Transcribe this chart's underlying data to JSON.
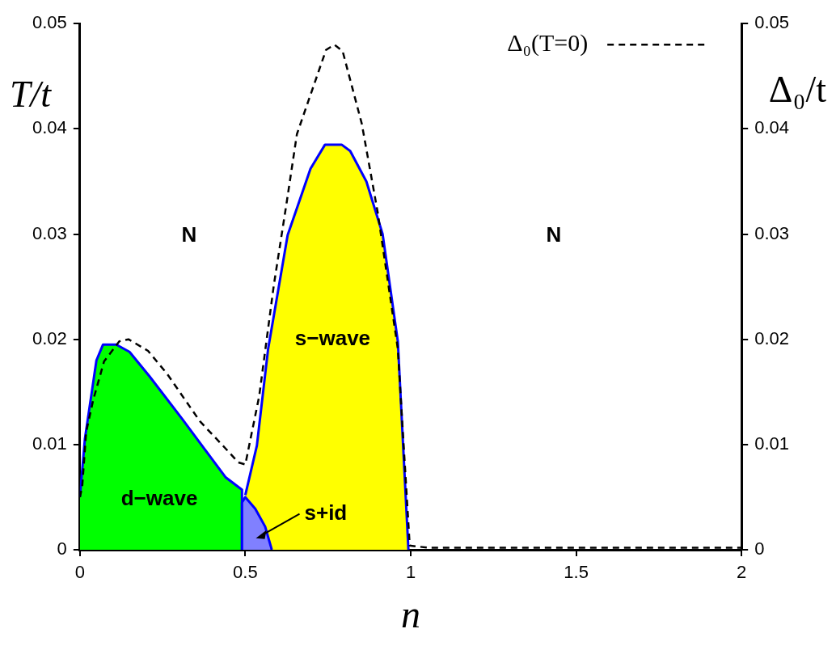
{
  "chart_data": {
    "type": "area",
    "xlabel": "n",
    "ylabel": "T/t",
    "y2label": "Δ₀/t",
    "xlim": [
      0,
      2
    ],
    "xticks": [
      0,
      0.5,
      1,
      1.5,
      2
    ],
    "ylim": [
      0,
      0.05
    ],
    "yticks": [
      0,
      0.01,
      0.02,
      0.03,
      0.04,
      0.05
    ],
    "y2lim": [
      0,
      0.05
    ],
    "y2ticks": [
      0,
      0.01,
      0.02,
      0.03,
      0.04,
      0.05
    ],
    "legend": "top right",
    "series": [
      {
        "type": "area",
        "color": "#00ff00",
        "x": [
          0,
          0.015,
          0.05,
          0.07,
          0.11,
          0.15,
          0.21,
          0.31,
          0.44,
          0.49,
          0.49
        ],
        "values": [
          0.005,
          0.0105,
          0.018,
          0.0195,
          0.0195,
          0.0188,
          0.0165,
          0.0124,
          0.0069,
          0.0057,
          0
        ]
      },
      {
        "type": "area",
        "color": "#ffff00",
        "x": [
          0.5,
          0.535,
          0.569,
          0.628,
          0.697,
          0.741,
          0.791,
          0.817,
          0.866,
          0.915,
          0.961,
          0.993
        ],
        "values": [
          0.0052,
          0.0099,
          0.0191,
          0.0299,
          0.0362,
          0.0385,
          0.0385,
          0.0379,
          0.035,
          0.03,
          0.0198,
          0
        ]
      },
      {
        "type": "area",
        "color": "#8080ff",
        "x": [
          0.49,
          0.49,
          0.5,
          0.53,
          0.56,
          0.58
        ],
        "values": [
          0,
          0.0045,
          0.005,
          0.0039,
          0.0022,
          0
        ]
      },
      {
        "type": "line",
        "name": "Δ₀(T=0)",
        "color": "#000000",
        "line_style": "dashed",
        "axis": "y2",
        "x": [
          0,
          0.007,
          0.019,
          0.04,
          0.073,
          0.119,
          0.147,
          0.206,
          0.264,
          0.363,
          0.438,
          0.479,
          0.5,
          0.542,
          0.586,
          0.625,
          0.656,
          0.744,
          0.769,
          0.794,
          0.852,
          0.9,
          0.961,
          0.997,
          1.05,
          2
        ],
        "values": [
          0.005,
          0.006,
          0.0112,
          0.0142,
          0.0179,
          0.0198,
          0.02,
          0.0189,
          0.0167,
          0.0122,
          0.0097,
          0.0083,
          0.0081,
          0.0146,
          0.0251,
          0.033,
          0.0395,
          0.0475,
          0.048,
          0.0474,
          0.0405,
          0.0321,
          0.0191,
          0.0004,
          0.0002,
          0.0002
        ]
      }
    ],
    "annotations": [
      "N",
      "N",
      "d−wave",
      "s−wave",
      "s+id"
    ]
  }
}
